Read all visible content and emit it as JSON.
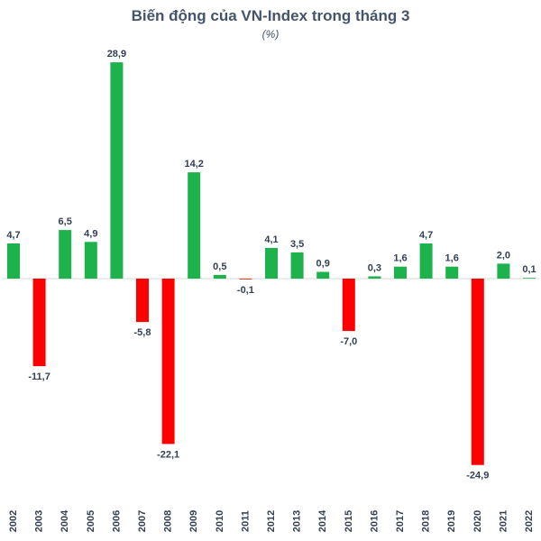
{
  "chart_data": {
    "type": "bar",
    "title": "Biến động của VN-Index trong tháng 3",
    "subtitle": "(%)",
    "categories": [
      "2002",
      "2003",
      "2004",
      "2005",
      "2006",
      "2007",
      "2008",
      "2009",
      "2010",
      "2011",
      "2012",
      "2013",
      "2014",
      "2015",
      "2016",
      "2017",
      "2018",
      "2019",
      "2020",
      "2021",
      "2022"
    ],
    "values": [
      4.7,
      -11.7,
      6.5,
      4.9,
      28.9,
      -5.8,
      -22.1,
      14.2,
      0.5,
      -0.1,
      4.1,
      3.5,
      0.9,
      -7.0,
      0.3,
      1.6,
      4.7,
      1.6,
      -24.9,
      2.0,
      0.1
    ],
    "value_labels": [
      "4,7",
      "-11,7",
      "6,5",
      "4,9",
      "28,9",
      "-5,8",
      "-22,1",
      "14,2",
      "0,5",
      "-0,1",
      "4,1",
      "3,5",
      "0,9",
      "-7,0",
      "0,3",
      "1,6",
      "4,7",
      "1,6",
      "-24,9",
      "2,0",
      "0,1"
    ],
    "positive_color": "#1db24c",
    "negative_color": "#ff0000",
    "xlabel": "",
    "ylabel": "",
    "grid": false,
    "legend": "none"
  }
}
